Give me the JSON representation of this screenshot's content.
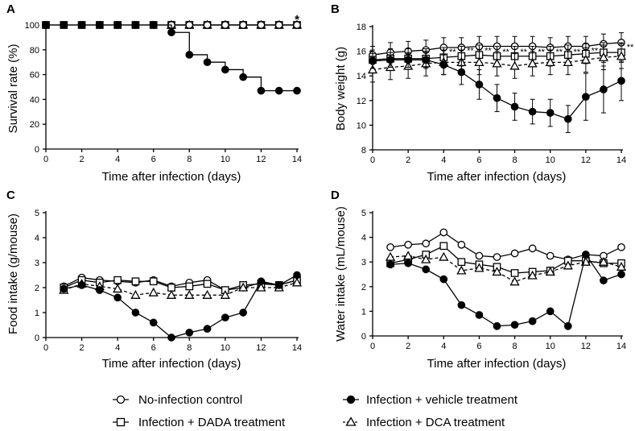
{
  "legend": [
    {
      "label": "No-infection control",
      "marker": "circle-open",
      "dash": "solid"
    },
    {
      "label": "Infection + vehicle treatment",
      "marker": "circle-filled",
      "dash": "solid"
    },
    {
      "label": "Infection + DADA treatment",
      "marker": "square-open",
      "dash": "solid"
    },
    {
      "label": "Infection + DCA treatment",
      "marker": "triangle-open",
      "dash": "dashed"
    }
  ],
  "chart_data": [
    {
      "panel": "A",
      "type": "line",
      "xlabel": "Time after infection (days)",
      "ylabel": "Survival rate (%)",
      "xlim": [
        0,
        14
      ],
      "ylim": [
        0,
        100
      ],
      "xticks": [
        0,
        2,
        4,
        6,
        8,
        10,
        12,
        14
      ],
      "yticks": [
        0,
        20,
        40,
        60,
        80,
        100
      ],
      "step": true,
      "series": [
        {
          "name": "Infection + DADA treatment",
          "marker": "square-open",
          "dash": "solid",
          "x": [
            0,
            1,
            2,
            3,
            4,
            5,
            6,
            7,
            8,
            9,
            10,
            11,
            12,
            13,
            14
          ],
          "y": [
            100,
            100,
            100,
            100,
            100,
            100,
            100,
            100,
            100,
            100,
            100,
            100,
            100,
            100,
            100
          ]
        },
        {
          "name": "Infection + DCA treatment",
          "marker": "triangle-open",
          "dash": "solid",
          "x": [
            7,
            8,
            9,
            10,
            11,
            12,
            13,
            14
          ],
          "y": [
            100,
            100,
            100,
            100,
            100,
            100,
            100,
            100
          ]
        },
        {
          "name": "No-infection control",
          "marker": "circle-open",
          "dash": "solid",
          "x": [
            7,
            8,
            9,
            10,
            11,
            12,
            13,
            14
          ],
          "y": [
            100,
            100,
            100,
            100,
            100,
            100,
            100,
            100
          ]
        },
        {
          "name": "Infection + vehicle treatment",
          "marker": "circle-filled",
          "dash": "solid",
          "x": [
            0,
            1,
            2,
            3,
            4,
            5,
            6,
            7,
            8,
            9,
            10,
            11,
            12,
            13,
            14
          ],
          "y": [
            100,
            100,
            100,
            100,
            100,
            100,
            100,
            94,
            76,
            70,
            64,
            58,
            47,
            47,
            47
          ]
        }
      ],
      "annotations": [
        {
          "text": "*",
          "x": 14,
          "y": 100
        }
      ]
    },
    {
      "panel": "B",
      "type": "line",
      "xlabel": "Time after infection (days)",
      "ylabel": "Body weight (g)",
      "xlim": [
        0,
        14
      ],
      "ylim": [
        8,
        18
      ],
      "xticks": [
        0,
        2,
        4,
        6,
        8,
        10,
        12,
        14
      ],
      "yticks": [
        8,
        10,
        12,
        14,
        16,
        18
      ],
      "series": [
        {
          "name": "No-infection control",
          "marker": "circle-open",
          "dash": "solid",
          "x": [
            0,
            1,
            2,
            3,
            4,
            5,
            6,
            7,
            8,
            9,
            10,
            11,
            12,
            13,
            14
          ],
          "y": [
            15.7,
            15.9,
            16.0,
            16.1,
            16.3,
            16.3,
            16.4,
            16.4,
            16.4,
            16.4,
            16.3,
            16.4,
            16.4,
            16.6,
            16.7
          ],
          "err": [
            0.7,
            0.8,
            0.8,
            0.8,
            0.8,
            0.8,
            0.8,
            0.8,
            0.8,
            0.8,
            0.8,
            0.8,
            0.8,
            0.8,
            0.8
          ]
        },
        {
          "name": "Infection + DADA treatment",
          "marker": "square-open",
          "dash": "solid",
          "x": [
            0,
            1,
            2,
            3,
            4,
            5,
            6,
            7,
            8,
            9,
            10,
            11,
            12,
            13,
            14
          ],
          "y": [
            15.3,
            15.4,
            15.4,
            15.4,
            15.5,
            15.6,
            15.7,
            15.6,
            15.6,
            15.6,
            15.6,
            15.7,
            15.8,
            15.9,
            15.9
          ],
          "err": [
            0.8,
            0.8,
            0.8,
            0.8,
            0.8,
            0.8,
            0.8,
            0.8,
            0.8,
            0.8,
            0.8,
            0.8,
            0.8,
            0.8,
            0.8
          ]
        },
        {
          "name": "Infection + DCA treatment",
          "marker": "triangle-open",
          "dash": "dashed",
          "x": [
            0,
            1,
            2,
            3,
            4,
            5,
            6,
            7,
            8,
            9,
            10,
            11,
            12,
            13,
            14
          ],
          "y": [
            14.5,
            14.7,
            14.8,
            15.0,
            15.1,
            15.1,
            15.1,
            15.0,
            14.8,
            15.0,
            15.1,
            15.1,
            15.3,
            15.5,
            15.6
          ],
          "err": [
            1.0,
            1.0,
            1.0,
            1.0,
            1.0,
            1.0,
            1.0,
            1.0,
            1.0,
            1.0,
            1.0,
            1.0,
            1.0,
            1.0,
            1.0
          ]
        },
        {
          "name": "Infection + vehicle treatment",
          "marker": "circle-filled",
          "dash": "solid",
          "x": [
            0,
            1,
            2,
            3,
            4,
            5,
            6,
            7,
            8,
            9,
            10,
            11,
            12,
            13,
            14
          ],
          "y": [
            15.2,
            15.3,
            15.3,
            15.3,
            14.9,
            14.3,
            13.3,
            12.2,
            11.5,
            11.1,
            11.0,
            10.5,
            12.3,
            12.9,
            13.6
          ],
          "err": [
            0.6,
            0.6,
            0.6,
            0.6,
            0.8,
            1.0,
            1.2,
            1.1,
            1.1,
            1.0,
            1.1,
            1.1,
            1.9,
            1.9,
            1.6
          ]
        }
      ],
      "annotations": [
        {
          "text": "**",
          "x": 4.5,
          "y": 15.9
        },
        {
          "text": "**",
          "x": 5.5,
          "y": 16.0
        },
        {
          "text": "**",
          "x": 6.5,
          "y": 16.0
        },
        {
          "text": "**",
          "x": 7.5,
          "y": 15.9
        },
        {
          "text": "**",
          "x": 8.5,
          "y": 15.9
        },
        {
          "text": "**",
          "x": 9.5,
          "y": 15.9
        },
        {
          "text": "**",
          "x": 10.5,
          "y": 15.9
        },
        {
          "text": "**",
          "x": 11.5,
          "y": 15.9
        },
        {
          "text": "**",
          "x": 12.5,
          "y": 16.0
        },
        {
          "text": "**",
          "x": 14.5,
          "y": 16.3
        }
      ]
    },
    {
      "panel": "C",
      "type": "line",
      "xlabel": "Time after infection (days)",
      "ylabel": "Food intake (g/mouse)",
      "xlim": [
        0,
        14
      ],
      "ylim": [
        0,
        5
      ],
      "xticks": [
        0,
        2,
        4,
        6,
        8,
        10,
        12,
        14
      ],
      "yticks": [
        0,
        1,
        2,
        3,
        4,
        5
      ],
      "series": [
        {
          "name": "No-infection control",
          "marker": "circle-open",
          "dash": "solid",
          "x": [
            1,
            2,
            3,
            4,
            5,
            6,
            7,
            8,
            9,
            10,
            11,
            12,
            13,
            14
          ],
          "y": [
            2.05,
            2.4,
            2.3,
            2.25,
            2.2,
            2.3,
            2.05,
            2.2,
            2.3,
            1.9,
            2.0,
            2.2,
            2.1,
            2.3
          ]
        },
        {
          "name": "Infection + DADA treatment",
          "marker": "square-open",
          "dash": "solid",
          "x": [
            1,
            2,
            3,
            4,
            5,
            6,
            7,
            8,
            9,
            10,
            11,
            12,
            13,
            14
          ],
          "y": [
            2.0,
            2.3,
            2.2,
            2.3,
            2.25,
            2.25,
            2.0,
            2.05,
            2.15,
            1.9,
            2.1,
            2.15,
            2.1,
            2.3
          ]
        },
        {
          "name": "Infection + DCA treatment",
          "marker": "triangle-open",
          "dash": "dashed",
          "x": [
            1,
            2,
            3,
            4,
            5,
            6,
            7,
            8,
            9,
            10,
            11,
            12,
            13,
            14
          ],
          "y": [
            1.9,
            2.15,
            2.05,
            1.95,
            1.7,
            1.8,
            1.7,
            1.7,
            1.7,
            1.7,
            2.0,
            2.0,
            2.0,
            2.2
          ]
        },
        {
          "name": "Infection + vehicle treatment",
          "marker": "circle-filled",
          "dash": "solid",
          "x": [
            1,
            2,
            3,
            4,
            5,
            6,
            7,
            8,
            9,
            10,
            11,
            12,
            13,
            14
          ],
          "y": [
            1.95,
            2.1,
            1.9,
            1.6,
            1.0,
            0.6,
            0.0,
            0.2,
            0.35,
            0.8,
            1.0,
            2.25,
            2.1,
            2.5
          ]
        }
      ]
    },
    {
      "panel": "D",
      "type": "line",
      "xlabel": "Time after infection (days)",
      "ylabel": "Water intake (mL/mouse)",
      "xlim": [
        0,
        14
      ],
      "ylim": [
        0,
        5
      ],
      "xticks": [
        0,
        2,
        4,
        6,
        8,
        10,
        12,
        14
      ],
      "yticks": [
        0,
        1,
        2,
        3,
        4,
        5
      ],
      "series": [
        {
          "name": "No-infection control",
          "marker": "circle-open",
          "dash": "solid",
          "x": [
            1,
            2,
            3,
            4,
            5,
            6,
            7,
            8,
            9,
            10,
            11,
            12,
            13,
            14
          ],
          "y": [
            3.6,
            3.7,
            3.75,
            4.2,
            3.7,
            3.25,
            3.2,
            3.35,
            3.55,
            3.25,
            3.1,
            3.3,
            3.25,
            3.6
          ]
        },
        {
          "name": "Infection + DADA treatment",
          "marker": "square-open",
          "dash": "solid",
          "x": [
            1,
            2,
            3,
            4,
            5,
            6,
            7,
            8,
            9,
            10,
            11,
            12,
            13,
            14
          ],
          "y": [
            2.95,
            3.1,
            3.3,
            3.65,
            3.0,
            2.9,
            2.8,
            2.55,
            2.6,
            2.65,
            3.05,
            3.05,
            2.95,
            2.95
          ]
        },
        {
          "name": "Infection + DCA treatment",
          "marker": "triangle-open",
          "dash": "dashed",
          "x": [
            1,
            2,
            3,
            4,
            5,
            6,
            7,
            8,
            9,
            10,
            11,
            12,
            13,
            14
          ],
          "y": [
            3.2,
            3.25,
            3.1,
            3.2,
            2.65,
            2.75,
            2.6,
            2.2,
            2.45,
            2.6,
            2.85,
            3.0,
            3.0,
            2.8
          ]
        },
        {
          "name": "Infection + vehicle treatment",
          "marker": "circle-filled",
          "dash": "solid",
          "x": [
            1,
            2,
            3,
            4,
            5,
            6,
            7,
            8,
            9,
            10,
            11,
            12,
            13,
            14
          ],
          "y": [
            2.9,
            2.95,
            2.7,
            2.3,
            1.25,
            0.85,
            0.4,
            0.45,
            0.6,
            1.0,
            0.4,
            3.3,
            2.25,
            2.5
          ]
        }
      ]
    }
  ]
}
